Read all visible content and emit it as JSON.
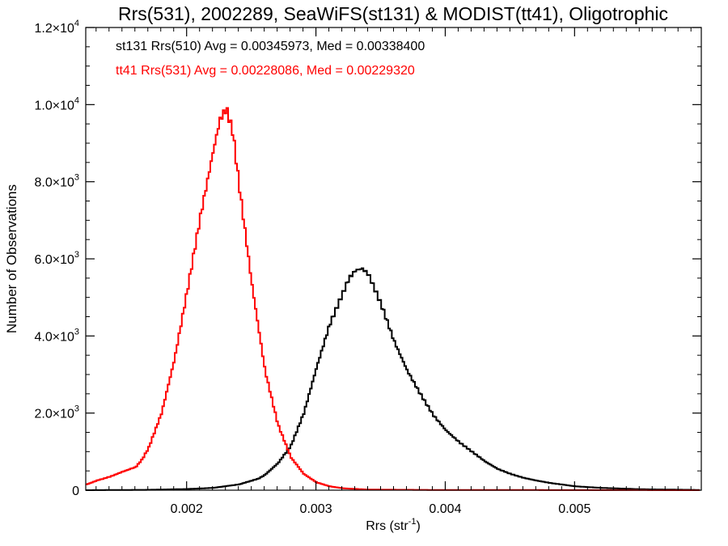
{
  "chart_data": {
    "type": "line",
    "title": "Rrs(531), 2002289, SeaWiFS(st131) & MODIST(tt41), Oligotrophic",
    "xlabel": "Rrs (str",
    "xlabel_sup": "-1",
    "xlabel_close": ")",
    "ylabel": "Number of Observations",
    "xlim": [
      0.00122,
      0.00598
    ],
    "ylim": [
      0,
      12000
    ],
    "x_ticks": [
      {
        "value": 0.002,
        "label": "0.002"
      },
      {
        "value": 0.003,
        "label": "0.003"
      },
      {
        "value": 0.004,
        "label": "0.004"
      },
      {
        "value": 0.005,
        "label": "0.005"
      }
    ],
    "y_ticks": [
      {
        "value": 0,
        "mant": "0",
        "exp": ""
      },
      {
        "value": 2000,
        "mant": "2.0×10",
        "exp": "3"
      },
      {
        "value": 4000,
        "mant": "4.0×10",
        "exp": "3"
      },
      {
        "value": 6000,
        "mant": "6.0×10",
        "exp": "3"
      },
      {
        "value": 8000,
        "mant": "8.0×10",
        "exp": "3"
      },
      {
        "value": 10000,
        "mant": "1.0×10",
        "exp": "4"
      },
      {
        "value": 12000,
        "mant": "1.2×10",
        "exp": "4"
      }
    ],
    "grid": false,
    "series": [
      {
        "name": "st131 Rrs(510) Avg = 0.00345973, Med = 0.00338400",
        "color": "#000000",
        "x": [
          0.00122,
          0.0017,
          0.002,
          0.0022,
          0.0024,
          0.00255,
          0.0026,
          0.0027,
          0.0028,
          0.0029,
          0.003,
          0.0031,
          0.0032,
          0.00325,
          0.0033,
          0.00335,
          0.0034,
          0.0035,
          0.0036,
          0.0037,
          0.0038,
          0.0039,
          0.004,
          0.0041,
          0.0042,
          0.0043,
          0.0044,
          0.0045,
          0.0046,
          0.0047,
          0.0048,
          0.005,
          0.0052,
          0.0055,
          0.00598
        ],
        "values": [
          0,
          10,
          30,
          60,
          150,
          300,
          400,
          700,
          1150,
          2000,
          3200,
          4300,
          5100,
          5500,
          5700,
          5750,
          5600,
          4800,
          3850,
          3100,
          2500,
          1950,
          1550,
          1250,
          1000,
          750,
          550,
          420,
          320,
          250,
          190,
          100,
          60,
          25,
          5
        ]
      },
      {
        "name": "tt41 Rrs(531) Avg = 0.00228086, Med = 0.00229320",
        "color": "#ff0000",
        "x": [
          0.00122,
          0.0013,
          0.0014,
          0.0015,
          0.0016,
          0.00165,
          0.0017,
          0.0018,
          0.0019,
          0.002,
          0.0021,
          0.0022,
          0.00225,
          0.0023,
          0.00235,
          0.0024,
          0.0025,
          0.0026,
          0.0027,
          0.0028,
          0.0029,
          0.003,
          0.0031,
          0.0032,
          0.0034,
          0.004,
          0.00598
        ],
        "values": [
          150,
          250,
          350,
          480,
          600,
          800,
          1100,
          2000,
          3400,
          5200,
          7100,
          8800,
          9600,
          9900,
          9300,
          7900,
          5300,
          3100,
          1700,
          850,
          420,
          200,
          100,
          50,
          15,
          5,
          0
        ]
      }
    ]
  }
}
